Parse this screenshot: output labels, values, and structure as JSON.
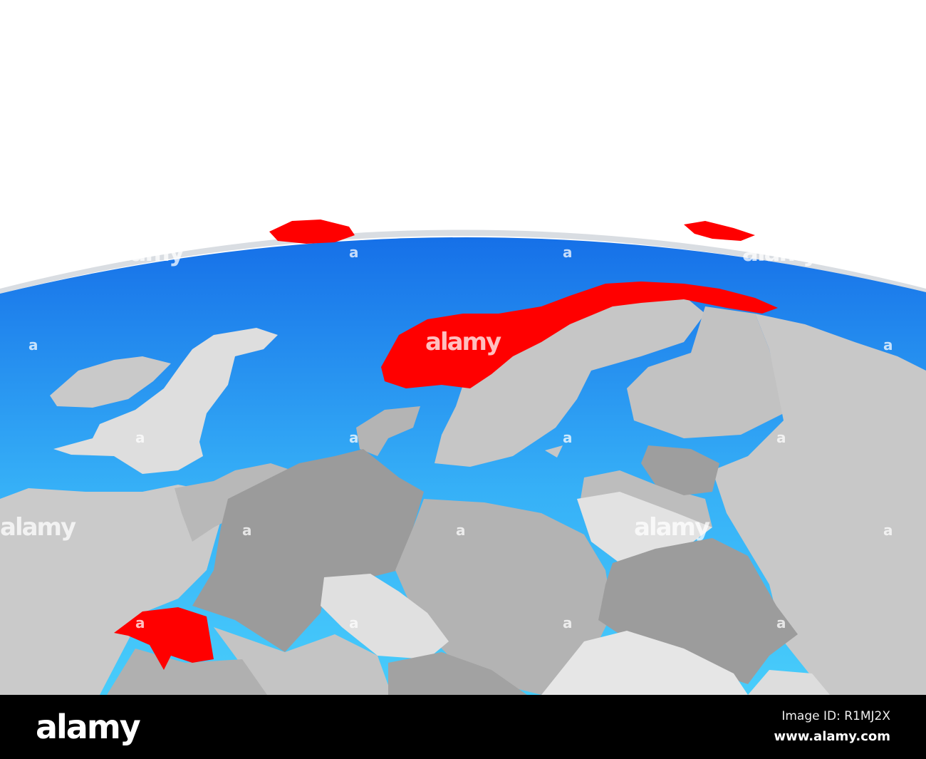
{
  "colors": {
    "ocean_top": "#1670e8",
    "ocean_bottom": "#48cdfb",
    "highlight": "#ff0000",
    "land_light": "#dedede",
    "land_mid": "#c8c8c8",
    "land_dark": "#9a9a9a",
    "background": "#ffffff",
    "footer": "#000000"
  },
  "watermark": {
    "text": "alamy",
    "small": "a"
  },
  "footer": {
    "logo": "alamy",
    "image_id": "Image ID: R1MJ2X",
    "website": "www.alamy.com"
  }
}
